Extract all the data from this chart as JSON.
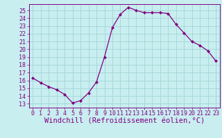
{
  "x": [
    0,
    1,
    2,
    3,
    4,
    5,
    6,
    7,
    8,
    9,
    10,
    11,
    12,
    13,
    14,
    15,
    16,
    17,
    18,
    19,
    20,
    21,
    22,
    23
  ],
  "y": [
    16.3,
    15.7,
    15.2,
    14.8,
    14.2,
    13.1,
    13.4,
    14.4,
    15.8,
    19.0,
    22.8,
    24.5,
    25.4,
    25.0,
    24.7,
    24.7,
    24.7,
    24.6,
    23.2,
    22.1,
    21.0,
    20.5,
    19.8,
    18.5
  ],
  "line_color": "#800080",
  "marker": "D",
  "marker_size": 2,
  "bg_color": "#c8eef0",
  "grid_color": "#a8d8da",
  "xlabel": "Windchill (Refroidissement éolien,°C)",
  "xlim": [
    -0.5,
    23.5
  ],
  "ylim": [
    12.5,
    25.8
  ],
  "xticks": [
    0,
    1,
    2,
    3,
    4,
    5,
    6,
    7,
    8,
    9,
    10,
    11,
    12,
    13,
    14,
    15,
    16,
    17,
    18,
    19,
    20,
    21,
    22,
    23
  ],
  "yticks": [
    13,
    14,
    15,
    16,
    17,
    18,
    19,
    20,
    21,
    22,
    23,
    24,
    25
  ],
  "tick_color": "#800080",
  "tick_fontsize": 6,
  "xlabel_fontsize": 7.5,
  "spine_color": "#800080"
}
